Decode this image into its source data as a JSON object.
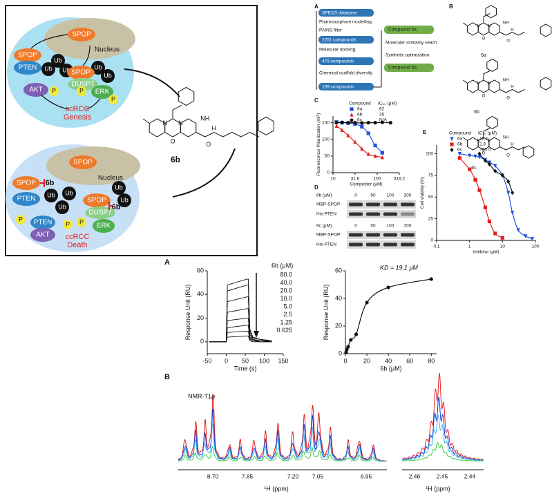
{
  "abstract": {
    "spop": "SPOP",
    "nucleus": "Nucleus",
    "pten": "PTEN",
    "ub": "Ub",
    "dusp7": "DUSP7",
    "akt": "AKT",
    "p": "P",
    "erk": "ERK",
    "ccrcc": "ccRCC",
    "genesis": "Genesis",
    "death": "Death",
    "compound": "6b"
  },
  "structure_atoms": [
    "N",
    "NH",
    "O",
    "H"
  ],
  "panel_labels": [
    "A",
    "B",
    "C",
    "D",
    "E"
  ],
  "flow": {
    "left": [
      "SPECS database",
      "Pharmacophore modelling",
      "PAINS filter",
      "2251 compounds",
      "Molecular docking",
      "479 compounds",
      "Chemical scaffold diversify",
      "109 compounds"
    ],
    "right": [
      "Compound 6a",
      "Molecular similarity seach",
      "Synthetic optimization",
      "Compound 6b"
    ]
  },
  "structure_names": [
    "6a",
    "6b",
    "6c"
  ],
  "western": {
    "rows": [
      "6b (μM)",
      "MBP-SPOP",
      "His-PTEN",
      "6c (μM)",
      "MBP-SPOP",
      "His-PTEN"
    ],
    "columns": [
      "0",
      "50",
      "100",
      "200"
    ]
  },
  "bottom_labels": [
    "A",
    "B"
  ],
  "nmr": {
    "title": "NMR-T1ρ",
    "xlabel": "¹H (ppm)",
    "ticks_left": [
      "8.70",
      "7.85",
      "7.20",
      "7.05",
      "6.95"
    ],
    "ticks_right": [
      "2.46",
      "2.45",
      "2.44"
    ]
  },
  "chart_data": [
    {
      "type": "scatter",
      "xscale": "log",
      "xlabel": "Competitor (μM)",
      "ylabel": "Fluorescence Polarization (mP)",
      "legend_title": [
        "Compound",
        "IC₅₀ (μM)"
      ],
      "x": [
        12,
        16,
        22,
        31.6,
        45,
        63,
        90,
        130,
        200
      ],
      "xlim": [
        10,
        316.2
      ],
      "xticks": [
        10,
        31.6,
        100,
        316.2
      ],
      "ylim": [
        0,
        170
      ],
      "yticks": [
        0,
        50,
        100,
        150
      ],
      "series": [
        {
          "name": "6a",
          "color": "#1f4fe0",
          "marker": "square",
          "ic50": 62,
          "values": [
            152,
            150,
            149,
            146,
            138,
            118,
            82,
            60,
            null
          ]
        },
        {
          "name": "6b",
          "color": "#e02020",
          "marker": "triangle",
          "ic50": 35,
          "values": [
            140,
            128,
            112,
            92,
            72,
            56,
            50,
            46,
            null
          ]
        },
        {
          "name": "6c",
          "color": "#111111",
          "marker": "circle",
          "ic50": "N/A",
          "values": [
            150,
            151,
            150,
            150,
            149,
            150,
            150,
            151,
            150
          ]
        }
      ]
    },
    {
      "type": "scatter",
      "xscale": "log",
      "xlabel": "Inhibitor (μM)",
      "ylabel": "Cell viability (%)",
      "legend_title": [
        "Compound",
        "IC₅₀ (μM)"
      ],
      "x": [
        0.5,
        1,
        1.5,
        2,
        3,
        4,
        6,
        10,
        15,
        20,
        30,
        50,
        80
      ],
      "xlim": [
        0.1,
        100
      ],
      "xticks": [
        0.1,
        1,
        10,
        100
      ],
      "ylim": [
        0,
        110
      ],
      "yticks": [
        0,
        25,
        50,
        75,
        100
      ],
      "series": [
        {
          "name": "6a",
          "color": "#1f4fe0",
          "marker": "triangle-down",
          "ic50": 18.1,
          "values": [
            100,
            98,
            97,
            96,
            93,
            90,
            86,
            75,
            55,
            32,
            12,
            5,
            2
          ]
        },
        {
          "name": "6b",
          "color": "#e02020",
          "marker": "square",
          "ic50": 2.8,
          "values": [
            95,
            82,
            70,
            58,
            38,
            22,
            8,
            3,
            null,
            null,
            null,
            null,
            null
          ]
        },
        {
          "name": "6c",
          "color": "#111111",
          "marker": "diamond",
          "ic50": ">50.0",
          "values": [
            null,
            null,
            null,
            100,
            92,
            88,
            80,
            75,
            68,
            55,
            null,
            null,
            null
          ]
        }
      ]
    },
    {
      "type": "line",
      "xlabel": "Time (s)",
      "ylabel": "Response Unit (RU)",
      "legend_title": "6b (μM)",
      "x": [
        -45,
        -5,
        0,
        3,
        55,
        58,
        62,
        70,
        90,
        120
      ],
      "xlim": [
        -50,
        150
      ],
      "xticks": [
        -50,
        0,
        50,
        100,
        150
      ],
      "ylim": [
        -10,
        60
      ],
      "yticks": [
        0,
        20,
        40,
        60
      ],
      "series": [
        {
          "name": "80.0",
          "color": "#111111",
          "values": [
            0,
            0,
            0,
            48,
            53,
            53,
            11,
            4,
            2,
            1
          ]
        },
        {
          "name": "40.0",
          "color": "#111111",
          "values": [
            0,
            0,
            0,
            43,
            48,
            48,
            10,
            4,
            2,
            1
          ]
        },
        {
          "name": "20.0",
          "color": "#111111",
          "values": [
            0,
            0,
            0,
            34,
            38,
            38,
            8,
            3,
            2,
            1
          ]
        },
        {
          "name": "10.0",
          "color": "#111111",
          "values": [
            0,
            0,
            0,
            25,
            28,
            28,
            6,
            2,
            1,
            1
          ]
        },
        {
          "name": "5.0",
          "color": "#111111",
          "values": [
            0,
            0,
            0,
            18,
            20,
            20,
            4,
            2,
            1,
            0
          ]
        },
        {
          "name": "2.5",
          "color": "#111111",
          "values": [
            0,
            0,
            0,
            12,
            14,
            14,
            3,
            1,
            1,
            0
          ]
        },
        {
          "name": "1.25",
          "color": "#111111",
          "values": [
            0,
            0,
            0,
            8,
            9,
            9,
            2,
            1,
            0,
            0
          ]
        },
        {
          "name": "0.625",
          "color": "#111111",
          "values": [
            0,
            0,
            0,
            4,
            5,
            5,
            1,
            0,
            0,
            0
          ]
        }
      ]
    },
    {
      "type": "scatter",
      "fit": "smooth",
      "xlabel": "6b (μM)",
      "ylabel": "Response Unit (RU)",
      "annotation": "KD ≈ 19.1 μM",
      "x": [
        0.625,
        1.25,
        2.5,
        5,
        10,
        20,
        40,
        80
      ],
      "xlim": [
        0,
        85
      ],
      "xticks": [
        0,
        20,
        40,
        60,
        80
      ],
      "ylim": [
        0,
        60
      ],
      "yticks": [
        0,
        20,
        40,
        60
      ],
      "series": [
        {
          "color": "#111111",
          "marker": "circle",
          "values": [
            1,
            3,
            5,
            10,
            14,
            37,
            48,
            54
          ]
        }
      ]
    }
  ]
}
